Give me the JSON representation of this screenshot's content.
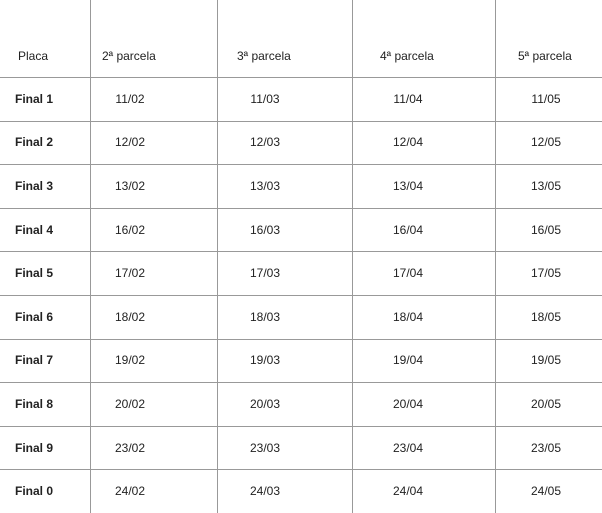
{
  "table": {
    "header": [
      "Placa",
      "2ª parcela",
      "3ª parcela",
      "4ª parcela",
      "5ª parcela"
    ],
    "rows": [
      [
        "Final 1",
        "11/02",
        "11/03",
        "11/04",
        "11/05"
      ],
      [
        "Final 2",
        "12/02",
        "12/03",
        "12/04",
        "12/05"
      ],
      [
        "Final 3",
        "13/02",
        "13/03",
        "13/04",
        "13/05"
      ],
      [
        "Final 4",
        "16/02",
        "16/03",
        "16/04",
        "16/05"
      ],
      [
        "Final 5",
        "17/02",
        "17/03",
        "17/04",
        "17/05"
      ],
      [
        "Final 6",
        "18/02",
        "18/03",
        "18/04",
        "18/05"
      ],
      [
        "Final 7",
        "19/02",
        "19/03",
        "19/04",
        "19/05"
      ],
      [
        "Final 8",
        "20/02",
        "20/03",
        "20/04",
        "20/05"
      ],
      [
        "Final 9",
        "23/02",
        "23/03",
        "23/04",
        "23/05"
      ],
      [
        "Final 0",
        "24/02",
        "24/03",
        "24/04",
        "24/05"
      ]
    ]
  }
}
